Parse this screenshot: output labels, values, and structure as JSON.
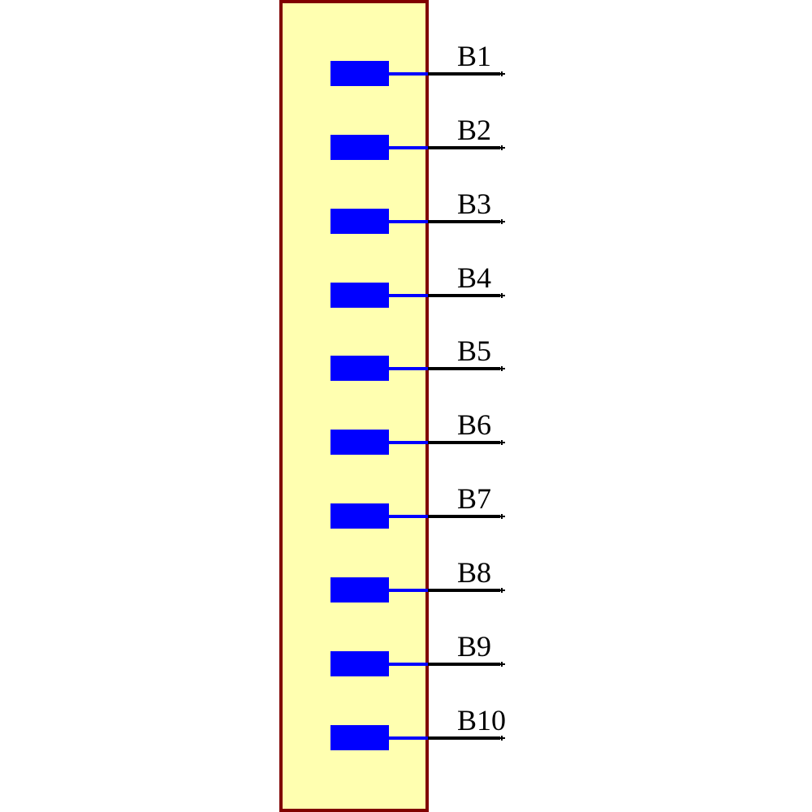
{
  "component": {
    "body_fill": "#FFFFB0",
    "body_border": "#800000",
    "pad_color": "#0000FF",
    "wire_color": "#000000",
    "pins": [
      {
        "label": "B1"
      },
      {
        "label": "B2"
      },
      {
        "label": "B3"
      },
      {
        "label": "B4"
      },
      {
        "label": "B5"
      },
      {
        "label": "B6"
      },
      {
        "label": "B7"
      },
      {
        "label": "B8"
      },
      {
        "label": "B9"
      },
      {
        "label": "B10"
      }
    ]
  }
}
